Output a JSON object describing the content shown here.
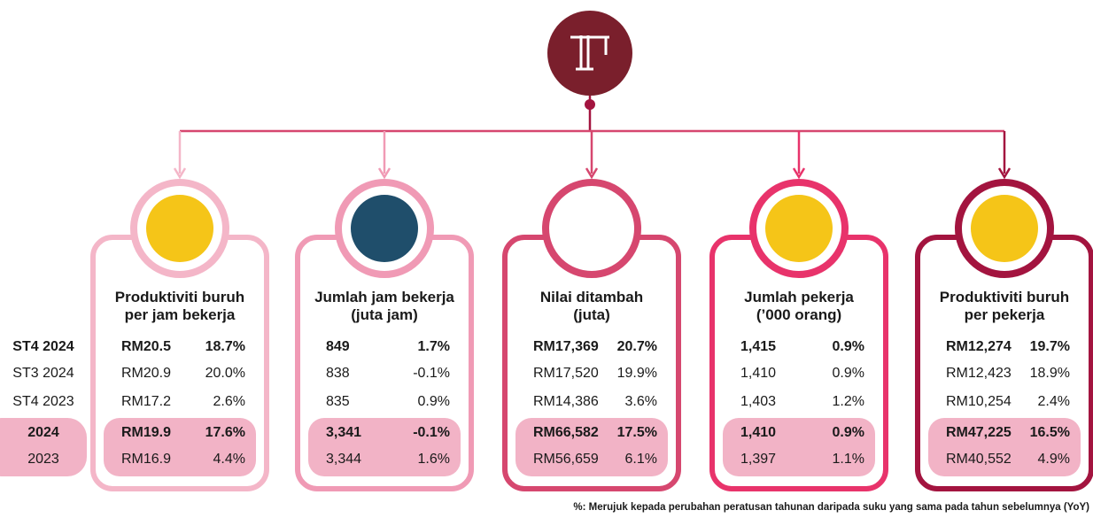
{
  "row_labels": [
    "ST4 2024",
    "ST3 2024",
    "ST4 2023",
    "2024",
    "2023"
  ],
  "cards": [
    {
      "title": [
        "Produktiviti buruh",
        "per jam bekerja"
      ],
      "rows": [
        [
          "RM20.5",
          "18.7%"
        ],
        [
          "RM20.9",
          "20.0%"
        ],
        [
          "RM17.2",
          "2.6%"
        ],
        [
          "RM19.9",
          "17.6%"
        ],
        [
          "RM16.9",
          "4.4%"
        ]
      ]
    },
    {
      "title": [
        "Jumlah jam bekerja",
        "(juta jam)"
      ],
      "rows": [
        [
          "849",
          "1.7%"
        ],
        [
          "838",
          "-0.1%"
        ],
        [
          "835",
          "0.9%"
        ],
        [
          "3,341",
          "-0.1%"
        ],
        [
          "3,344",
          "1.6%"
        ]
      ]
    },
    {
      "title": [
        "Nilai ditambah",
        "(juta)"
      ],
      "rows": [
        [
          "RM17,369",
          "20.7%"
        ],
        [
          "RM17,520",
          "19.9%"
        ],
        [
          "RM14,386",
          "3.6%"
        ],
        [
          "RM66,582",
          "17.5%"
        ],
        [
          "RM56,659",
          "6.1%"
        ]
      ]
    },
    {
      "title": [
        "Jumlah pekerja",
        "(’000 orang)"
      ],
      "rows": [
        [
          "1,415",
          "0.9%"
        ],
        [
          "1,410",
          "0.9%"
        ],
        [
          "1,403",
          "1.2%"
        ],
        [
          "1,410",
          "0.9%"
        ],
        [
          "1,397",
          "1.1%"
        ]
      ]
    },
    {
      "title": [
        "Produktiviti buruh",
        "per pekerja"
      ],
      "rows": [
        [
          "RM12,274",
          "19.7%"
        ],
        [
          "RM12,423",
          "18.9%"
        ],
        [
          "RM10,254",
          "2.4%"
        ],
        [
          "RM47,225",
          "16.5%"
        ],
        [
          "RM40,552",
          "4.9%"
        ]
      ]
    }
  ],
  "footnote": "%: Merujuk kepada perubahan peratusan tahunan daripada suku yang sama pada tahun sebelumnya (YoY)"
}
